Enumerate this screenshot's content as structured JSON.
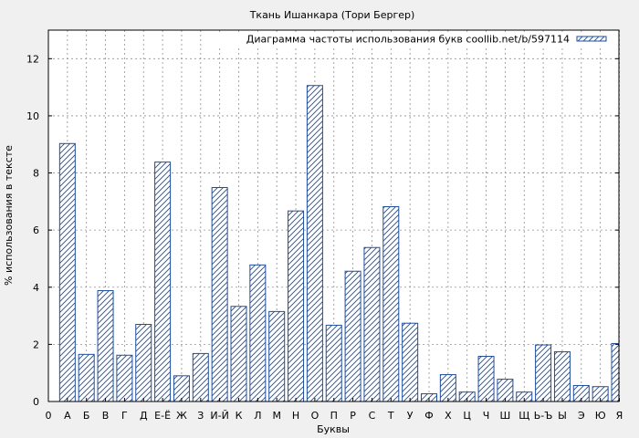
{
  "chart_data": {
    "type": "bar",
    "title": "Ткань Ишанкара (Тори Бергер)",
    "xlabel": "Буквы",
    "ylabel": "% использования в тексте",
    "legend": {
      "label": "Диаграмма частоты использования букв coollib.net/b/597114",
      "placement": "top-right"
    },
    "x_origin_label": "0",
    "categories": [
      "А",
      "Б",
      "В",
      "Г",
      "Д",
      "Е-Ё",
      "Ж",
      "З",
      "И-Й",
      "К",
      "Л",
      "М",
      "Н",
      "О",
      "П",
      "Р",
      "С",
      "Т",
      "У",
      "Ф",
      "Х",
      "Ц",
      "Ч",
      "Ш",
      "Щ",
      "Ь-Ъ",
      "Ы",
      "Э",
      "Ю",
      "Я"
    ],
    "values": [
      9.03,
      1.65,
      3.88,
      1.62,
      2.7,
      8.38,
      0.9,
      1.68,
      7.49,
      3.33,
      4.78,
      3.15,
      6.67,
      11.06,
      2.67,
      4.56,
      5.39,
      6.82,
      2.74,
      0.27,
      0.94,
      0.33,
      1.58,
      0.78,
      0.33,
      1.98,
      1.74,
      0.56,
      0.52,
      2.03
    ],
    "yticks": [
      0,
      2,
      4,
      6,
      8,
      10,
      12
    ],
    "ylim": [
      0,
      13
    ],
    "grid": true,
    "bar_color": "#1f4e9e"
  }
}
